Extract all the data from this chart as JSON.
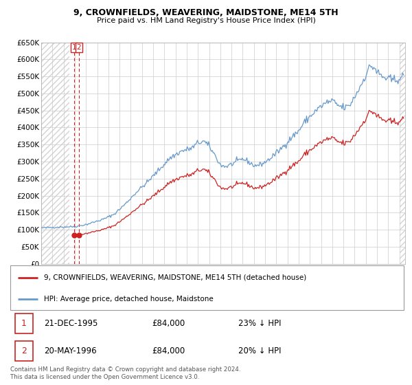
{
  "title1": "9, CROWNFIELDS, WEAVERING, MAIDSTONE, ME14 5TH",
  "title2": "Price paid vs. HM Land Registry's House Price Index (HPI)",
  "yticks": [
    0,
    50000,
    100000,
    150000,
    200000,
    250000,
    300000,
    350000,
    400000,
    450000,
    500000,
    550000,
    600000,
    650000
  ],
  "ytick_labels": [
    "£0",
    "£50K",
    "£100K",
    "£150K",
    "£200K",
    "£250K",
    "£300K",
    "£350K",
    "£400K",
    "£450K",
    "£500K",
    "£550K",
    "£600K",
    "£650K"
  ],
  "sale_label": "9, CROWNFIELDS, WEAVERING, MAIDSTONE, ME14 5TH (detached house)",
  "hpi_label": "HPI: Average price, detached house, Maidstone",
  "table_rows": [
    {
      "num": "1",
      "date": "21-DEC-1995",
      "price": "£84,000",
      "pct": "23% ↓ HPI"
    },
    {
      "num": "2",
      "date": "20-MAY-1996",
      "price": "£84,000",
      "pct": "20% ↓ HPI"
    }
  ],
  "footer": "Contains HM Land Registry data © Crown copyright and database right 2024.\nThis data is licensed under the Open Government Licence v3.0.",
  "hpi_color": "#6699cc",
  "property_color": "#cc2222",
  "dashed_vline_color": "#cc2222",
  "sale_dot_color": "#cc2222",
  "grid_color": "#cccccc",
  "box_label_color": "#cc2222",
  "box_label_border": "#cc2222",
  "ylim": [
    0,
    650000
  ],
  "xlim_start": 1993.0,
  "xlim_end": 2025.5,
  "hpi_anchors_x": [
    1993.0,
    1994.0,
    1995.0,
    1995.5,
    1996.0,
    1997.0,
    1997.5,
    1998.5,
    1999.5,
    2000.5,
    2001.5,
    2002.5,
    2003.5,
    2004.5,
    2005.5,
    2006.5,
    2007.0,
    2007.5,
    2008.0,
    2008.5,
    2009.0,
    2009.5,
    2010.0,
    2010.5,
    2011.0,
    2011.5,
    2012.0,
    2012.5,
    2013.0,
    2013.5,
    2014.0,
    2014.5,
    2015.0,
    2015.5,
    2016.0,
    2016.5,
    2017.0,
    2017.5,
    2018.0,
    2018.5,
    2019.0,
    2019.5,
    2020.0,
    2020.5,
    2021.0,
    2021.5,
    2022.0,
    2022.2,
    2022.5,
    2022.8,
    2023.0,
    2023.5,
    2024.0,
    2024.5,
    2025.0,
    2025.5
  ],
  "hpi_anchors_y": [
    105000,
    107000,
    108000,
    108500,
    109000,
    115000,
    120000,
    130000,
    145000,
    175000,
    210000,
    240000,
    275000,
    310000,
    330000,
    340000,
    355000,
    360000,
    345000,
    320000,
    290000,
    285000,
    292000,
    300000,
    308000,
    300000,
    288000,
    290000,
    298000,
    310000,
    325000,
    340000,
    358000,
    375000,
    390000,
    415000,
    432000,
    448000,
    462000,
    473000,
    478000,
    465000,
    458000,
    462000,
    490000,
    520000,
    555000,
    570000,
    580000,
    575000,
    562000,
    548000,
    542000,
    538000,
    545000,
    548000
  ],
  "sale1_date": 1995.958,
  "sale2_date": 1996.375,
  "sale1_price": 84000,
  "sale2_price": 84000,
  "noise_seed": 42,
  "noise_scale": 0.013
}
